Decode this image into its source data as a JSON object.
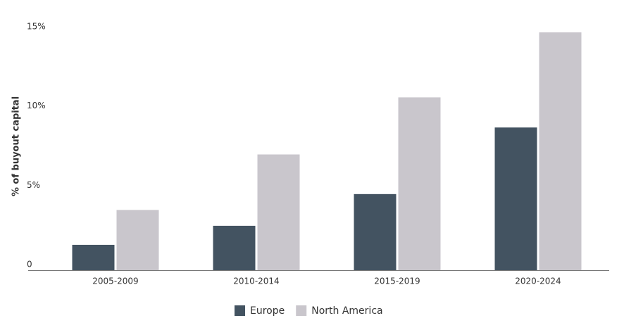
{
  "chart_data": {
    "type": "bar",
    "y_label": "% of buyout capital",
    "categories": [
      "2005-2009",
      "2010-2014",
      "2015-2019",
      "2020-2024"
    ],
    "series": [
      {
        "name": "Europe",
        "color": "#435361",
        "values": [
          1.6,
          2.8,
          4.8,
          9.0
        ]
      },
      {
        "name": "North America",
        "color": "#c9c6cc",
        "values": [
          3.8,
          7.3,
          10.9,
          15.0
        ]
      }
    ],
    "ylim": [
      0,
      15
    ],
    "yticks": [
      0,
      {
        "value": 5,
        "label": "5%"
      },
      {
        "value": 10,
        "label": "10%"
      },
      {
        "value": 15,
        "label": "15%"
      }
    ],
    "grid": false
  }
}
